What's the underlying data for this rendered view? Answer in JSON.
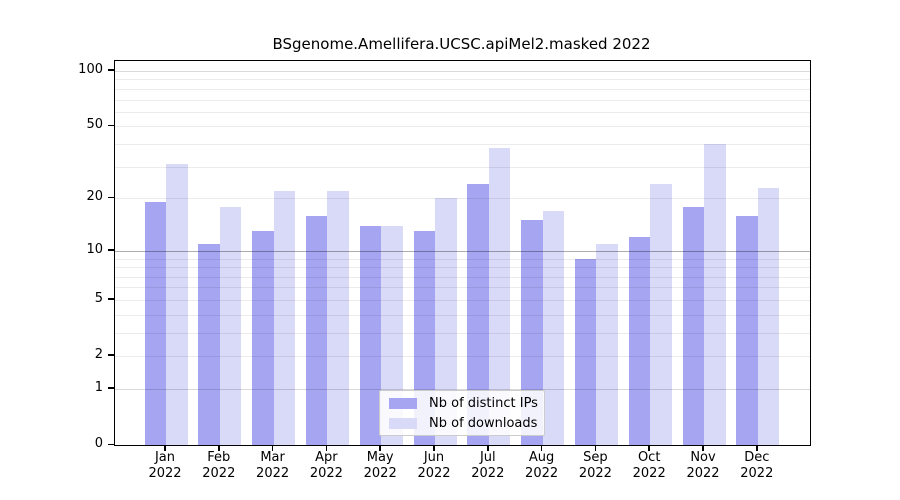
{
  "chart_data": {
    "type": "bar",
    "title": "BSgenome.Amellifera.UCSC.apiMel2.masked 2022",
    "categories": [
      "Jan",
      "Feb",
      "Mar",
      "Apr",
      "May",
      "Jun",
      "Jul",
      "Aug",
      "Sep",
      "Oct",
      "Nov",
      "Dec"
    ],
    "category_year": "2022",
    "series": [
      {
        "name": "Nb of distinct IPs",
        "color": "#a5a5f2",
        "values": [
          19,
          11,
          13,
          16,
          14,
          13,
          24,
          15,
          9,
          12,
          18,
          16
        ]
      },
      {
        "name": "Nb of downloads",
        "color": "#d9d9f8",
        "values": [
          31,
          18,
          22,
          22,
          14,
          20,
          38,
          17,
          11,
          24,
          40,
          23
        ]
      }
    ],
    "y_axis": {
      "scale": "log1p",
      "tick_labels": [
        "100",
        "50",
        "20",
        "10",
        "5",
        "2",
        "1",
        "0"
      ],
      "tick_values": [
        100,
        50,
        20,
        10,
        5,
        2,
        1,
        0
      ],
      "gridline_values": [
        1,
        2,
        3,
        4,
        5,
        6,
        7,
        8,
        9,
        10,
        20,
        30,
        40,
        50,
        60,
        70,
        80,
        90,
        100
      ],
      "range": [
        0,
        113
      ]
    },
    "legend": {
      "position": "bottom-center"
    },
    "grid": true
  }
}
